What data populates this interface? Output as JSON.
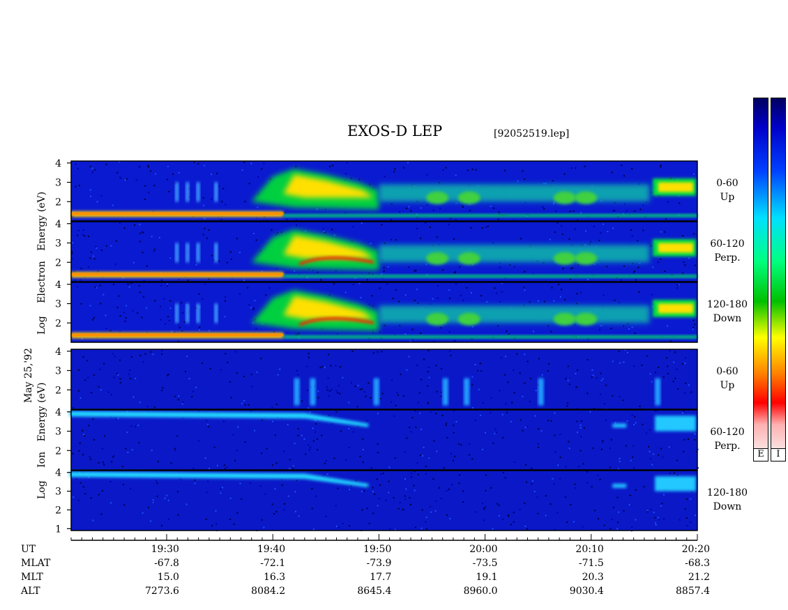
{
  "title": "EXOS-D LEP",
  "file": "[92052519.lep]",
  "date_label": "May 25,'92",
  "electron_ylabel": [
    "Log",
    "Electron",
    "Energy",
    "(eV)"
  ],
  "ion_ylabel": [
    "Log",
    "Ion",
    "Energy",
    "(eV)"
  ],
  "colorbar_labels": [
    "E",
    "I"
  ],
  "row_headers": [
    "UT",
    "MLAT",
    "MLT",
    "ALT"
  ],
  "table_columns": [
    {
      "ut": "19:30",
      "mlat": "-67.8",
      "mlt": "15.0",
      "alt": "7273.6"
    },
    {
      "ut": "19:40",
      "mlat": "-72.1",
      "mlt": "16.3",
      "alt": "8084.2"
    },
    {
      "ut": "19:50",
      "mlat": "-73.9",
      "mlt": "17.7",
      "alt": "8645.4"
    },
    {
      "ut": "20:00",
      "mlat": "-73.5",
      "mlt": "19.1",
      "alt": "8960.0"
    },
    {
      "ut": "20:10",
      "mlat": "-71.5",
      "mlt": "20.3",
      "alt": "9030.4"
    },
    {
      "ut": "20:20",
      "mlat": "-68.3",
      "mlt": "21.2",
      "alt": "8857.4"
    }
  ],
  "chart_data": {
    "type": "heatmap",
    "x_range": [
      "19:21",
      "20:20"
    ],
    "x_ticks": [
      "19:30",
      "19:40",
      "19:50",
      "20:00",
      "20:10",
      "20:20"
    ],
    "y_scale": "log10 energy (eV)",
    "colormap": [
      "#f8f8f8",
      "#ff0000",
      "#ff8000",
      "#ffff00",
      "#00c000",
      "#00ffff",
      "#0000ff",
      "#000060"
    ],
    "panels": [
      {
        "species": "Electron",
        "pitch_label": [
          "0-60",
          "Up"
        ],
        "y_ticks": [
          "4",
          "3",
          "2"
        ],
        "ylim": [
          1,
          4.1
        ]
      },
      {
        "species": "Electron",
        "pitch_label": [
          "60-120",
          "Perp."
        ],
        "y_ticks": [
          "4",
          "3",
          "2"
        ],
        "ylim": [
          1,
          4.1
        ]
      },
      {
        "species": "Electron",
        "pitch_label": [
          "120-180",
          "Down"
        ],
        "y_ticks": [
          "4",
          "3",
          "2"
        ],
        "ylim": [
          1,
          4.1
        ]
      },
      {
        "species": "Ion",
        "pitch_label": [
          "0-60",
          "Up"
        ],
        "y_ticks": [
          "4",
          "3",
          "2"
        ],
        "ylim": [
          1,
          4.1
        ]
      },
      {
        "species": "Ion",
        "pitch_label": [
          "60-120",
          "Perp."
        ],
        "y_ticks": [
          "4",
          "3",
          "2"
        ],
        "ylim": [
          1,
          4.1
        ]
      },
      {
        "species": "Ion",
        "pitch_label": [
          "120-180",
          "Down"
        ],
        "y_ticks": [
          "4",
          "3",
          "2",
          "1"
        ],
        "ylim": [
          0.9,
          4.1
        ]
      }
    ]
  }
}
